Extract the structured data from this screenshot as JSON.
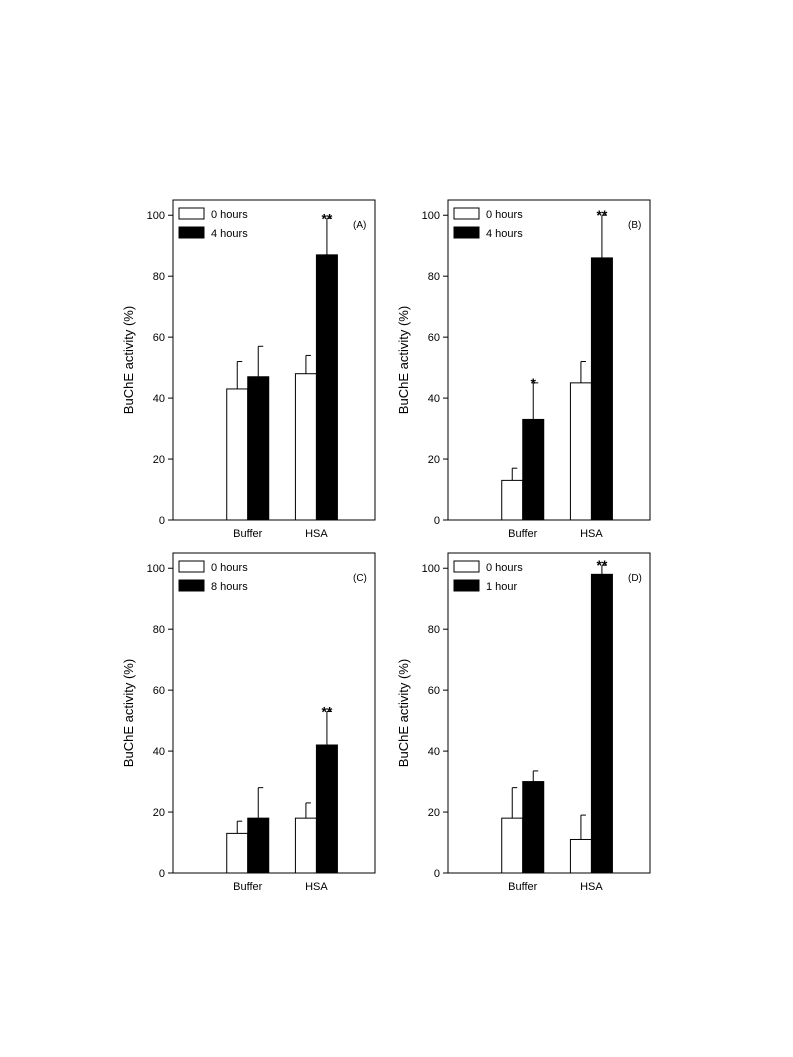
{
  "chart_data": [
    {
      "type": "bar",
      "panel_label": "(A)",
      "ylabel": "BuChE activity (%)",
      "ylim": [
        0,
        105
      ],
      "yticks": [
        0,
        20,
        40,
        60,
        80,
        100
      ],
      "categories": [
        "Buffer",
        "HSA"
      ],
      "series": [
        {
          "name": "0 hours",
          "color": "#ffffff",
          "values": [
            43,
            48
          ],
          "errors": [
            9,
            6
          ],
          "sig": [
            "",
            ""
          ]
        },
        {
          "name": "4 hours",
          "color": "#000000",
          "values": [
            47,
            87
          ],
          "errors": [
            10,
            12
          ],
          "sig": [
            "",
            "**"
          ]
        }
      ],
      "legend": "top-left"
    },
    {
      "type": "bar",
      "panel_label": "(B)",
      "ylabel": "BuChE activity (%)",
      "ylim": [
        0,
        105
      ],
      "yticks": [
        0,
        20,
        40,
        60,
        80,
        100
      ],
      "categories": [
        "Buffer",
        "HSA"
      ],
      "series": [
        {
          "name": "0 hours",
          "color": "#ffffff",
          "values": [
            13,
            45
          ],
          "errors": [
            4,
            7
          ],
          "sig": [
            "",
            ""
          ]
        },
        {
          "name": "4 hours",
          "color": "#000000",
          "values": [
            33,
            86
          ],
          "errors": [
            12,
            14
          ],
          "sig": [
            "*",
            "**"
          ]
        }
      ],
      "legend": "top-left"
    },
    {
      "type": "bar",
      "panel_label": "(C)",
      "ylabel": "BuChE activity (%)",
      "ylim": [
        0,
        105
      ],
      "yticks": [
        0,
        20,
        40,
        60,
        80,
        100
      ],
      "categories": [
        "Buffer",
        "HSA"
      ],
      "series": [
        {
          "name": "0 hours",
          "color": "#ffffff",
          "values": [
            13,
            18
          ],
          "errors": [
            4,
            5
          ],
          "sig": [
            "",
            ""
          ]
        },
        {
          "name": "8 hours",
          "color": "#000000",
          "values": [
            18,
            42
          ],
          "errors": [
            10,
            11
          ],
          "sig": [
            "",
            "**"
          ]
        }
      ],
      "legend": "top-left"
    },
    {
      "type": "bar",
      "panel_label": "(D)",
      "ylabel": "BuChE activity (%)",
      "ylim": [
        0,
        105
      ],
      "yticks": [
        0,
        20,
        40,
        60,
        80,
        100
      ],
      "categories": [
        "Buffer",
        "HSA"
      ],
      "series": [
        {
          "name": "0 hours",
          "color": "#ffffff",
          "values": [
            18,
            11
          ],
          "errors": [
            10,
            8
          ],
          "sig": [
            "",
            ""
          ]
        },
        {
          "name": "1 hour",
          "color": "#000000",
          "values": [
            30,
            98
          ],
          "errors": [
            3.5,
            3
          ],
          "sig": [
            "",
            "**"
          ]
        }
      ],
      "legend": "top-left"
    }
  ]
}
